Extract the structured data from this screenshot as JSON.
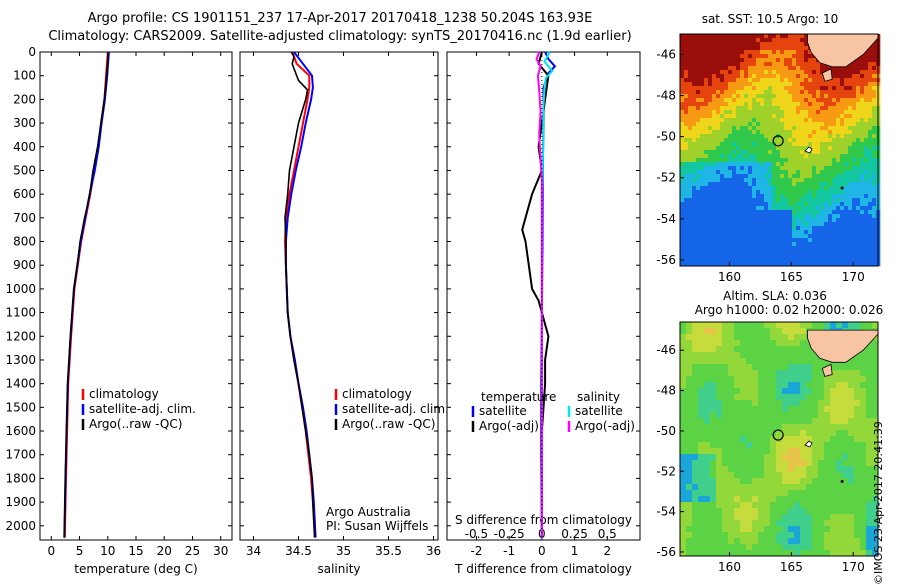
{
  "header": {
    "line1": "Argo profile: CS 1901151_237 17-Apr-2017 20170418_1238 50.204S 163.93E",
    "line2": "Climatology: CARS2009. Satellite-adjusted climatology: synTS_20170416.nc (1.9d earlier)"
  },
  "stamp": "©IMOS 23-Apr-2017 20:41:39",
  "colors": {
    "climatology": "#ff0000",
    "satellite": "#0000ff",
    "argo": "#000000",
    "satellite_sal": "#00e5ee",
    "argo_sal": "#ff00ff",
    "land": "#f7c4a4"
  },
  "depth_ticks": [
    0,
    100,
    200,
    300,
    400,
    500,
    600,
    700,
    800,
    900,
    1000,
    1100,
    1200,
    1300,
    1400,
    1500,
    1600,
    1700,
    1800,
    1900,
    2000
  ],
  "chart_data": [
    {
      "type": "line",
      "xlabel": "temperature (deg C)",
      "xticks": [
        "0",
        "5",
        "10",
        "15",
        "20",
        "25",
        "30"
      ],
      "xlim": [
        -2,
        32
      ],
      "ylim": [
        0,
        2060
      ],
      "legend": [
        "climatology",
        "satellite-adj. clim.",
        "Argo(..raw -QC)"
      ],
      "legend_position": "lower-right",
      "series": [
        {
          "name": "climatology",
          "depth": [
            0,
            100,
            200,
            300,
            400,
            500,
            600,
            700,
            800,
            900,
            1000,
            1200,
            1400,
            1600,
            1800,
            2050
          ],
          "values": [
            10.0,
            9.7,
            9.4,
            8.8,
            8.3,
            7.6,
            6.9,
            6.1,
            5.3,
            4.7,
            4.1,
            3.5,
            3.0,
            2.8,
            2.6,
            2.4
          ]
        },
        {
          "name": "satellite-adj. clim.",
          "depth": [
            0,
            100,
            200,
            300,
            400,
            500,
            600,
            700,
            800,
            900,
            1000,
            1200,
            1400,
            1600,
            1800,
            2050
          ],
          "values": [
            10.2,
            9.9,
            9.5,
            8.9,
            8.4,
            7.7,
            6.8,
            6.0,
            5.2,
            4.6,
            4.0,
            3.4,
            2.9,
            2.7,
            2.5,
            2.3
          ]
        },
        {
          "name": "Argo(..raw -QC)",
          "depth": [
            0,
            100,
            200,
            300,
            400,
            500,
            600,
            650,
            700,
            800,
            900,
            1000,
            1200,
            1400,
            1600,
            1800,
            2050
          ],
          "values": [
            10.1,
            9.8,
            9.4,
            8.8,
            8.2,
            7.4,
            6.8,
            6.4,
            5.9,
            5.1,
            4.6,
            4.0,
            3.4,
            2.9,
            2.7,
            2.5,
            2.3
          ]
        }
      ]
    },
    {
      "type": "line",
      "xlabel": "salinity",
      "xticks": [
        "34",
        "34.5",
        "35",
        "35.5",
        "36"
      ],
      "xlim": [
        33.85,
        36.05
      ],
      "ylim": [
        0,
        2060
      ],
      "legend": [
        "climatology",
        "satellite-adj. clim.",
        "Argo(..raw -QC)"
      ],
      "legend_position": "lower-right",
      "annotation": [
        "Argo Australia",
        "PI: Susan Wijffels"
      ],
      "series": [
        {
          "name": "climatology",
          "depth": [
            0,
            50,
            100,
            150,
            200,
            300,
            400,
            500,
            600,
            700,
            800,
            900,
            1000,
            1100,
            1200,
            1300,
            1400,
            1500,
            1600,
            1700,
            1800,
            1900,
            2050
          ],
          "values": [
            34.43,
            34.48,
            34.62,
            34.62,
            34.6,
            34.55,
            34.5,
            34.45,
            34.4,
            34.36,
            34.35,
            34.36,
            34.37,
            34.38,
            34.41,
            34.45,
            34.5,
            34.54,
            34.58,
            34.61,
            34.64,
            34.66,
            34.68
          ]
        },
        {
          "name": "satellite-adj. clim.",
          "depth": [
            0,
            50,
            100,
            150,
            200,
            300,
            400,
            500,
            600,
            700,
            800,
            900,
            1000,
            1100,
            1200,
            1300,
            1400,
            1500,
            1600,
            1700,
            1800,
            1900,
            2050
          ],
          "values": [
            34.45,
            34.55,
            34.65,
            34.66,
            34.64,
            34.58,
            34.53,
            34.47,
            34.42,
            34.38,
            34.36,
            34.36,
            34.37,
            34.38,
            34.41,
            34.46,
            34.5,
            34.55,
            34.59,
            34.62,
            34.65,
            34.67,
            34.69
          ]
        },
        {
          "name": "Argo(..raw -QC)",
          "depth": [
            0,
            20,
            50,
            80,
            120,
            160,
            200,
            300,
            400,
            500,
            600,
            700,
            800,
            900,
            1000,
            1100,
            1200,
            1300,
            1400,
            1500,
            1600,
            1700,
            1800,
            1900,
            2050
          ],
          "values": [
            34.42,
            34.45,
            34.43,
            34.46,
            34.5,
            34.6,
            34.58,
            34.5,
            34.45,
            34.4,
            34.38,
            34.35,
            34.36,
            34.36,
            34.37,
            34.38,
            34.41,
            34.45,
            34.5,
            34.54,
            34.58,
            34.62,
            34.65,
            34.66,
            34.68
          ]
        }
      ]
    },
    {
      "type": "line",
      "xlabel": "T difference from climatology",
      "xlabel_top": "S difference from climatology",
      "xticks": [
        "-2",
        "-1",
        "0",
        "1",
        "2"
      ],
      "xticks_top": [
        "-0.5",
        "-0.25",
        "0",
        "0.25",
        "0.5"
      ],
      "xlim": [
        -2.9,
        3.0
      ],
      "ylim": [
        0,
        2060
      ],
      "legend_columns": [
        {
          "title": "temperature",
          "items": [
            "satellite",
            "Argo(-adj)"
          ]
        },
        {
          "title": "salinity",
          "items": [
            "satellite",
            "Argo(-adj)"
          ]
        }
      ],
      "legend_position": "lower-center",
      "series": [
        {
          "name": "temperature satellite",
          "depth": [
            0,
            30,
            60,
            90,
            150,
            300,
            500,
            800,
            1100,
            1400,
            1700,
            2050
          ],
          "values": [
            0.1,
            0.2,
            0.4,
            0.2,
            0.05,
            0.05,
            0.03,
            0.02,
            0.0,
            -0.02,
            -0.02,
            0.0
          ]
        },
        {
          "name": "temperature Argo(-adj)",
          "depth": [
            0,
            50,
            100,
            200,
            300,
            400,
            500,
            600,
            700,
            750,
            800,
            900,
            1000,
            1050,
            1100,
            1200,
            1300,
            1400,
            1600,
            1800,
            2050
          ],
          "values": [
            0.0,
            -0.1,
            0.2,
            0.1,
            0.0,
            -0.1,
            0.0,
            -0.3,
            -0.5,
            -0.6,
            -0.5,
            -0.4,
            -0.3,
            -0.1,
            0.0,
            0.2,
            0.1,
            0.1,
            0.0,
            0.0,
            0.0
          ]
        },
        {
          "name": "salinity satellite",
          "depth": [
            0,
            40,
            80,
            110,
            150,
            250,
            400,
            600,
            900,
            1200,
            1500,
            1800,
            2050
          ],
          "values": [
            0.06,
            0.02,
            0.08,
            0.03,
            0.02,
            0.01,
            0.01,
            0.0,
            0.0,
            0.0,
            0.0,
            0.0,
            0.0
          ]
        },
        {
          "name": "salinity Argo(-adj)",
          "depth": [
            0,
            30,
            60,
            100,
            160,
            250,
            350,
            450,
            550,
            650,
            800,
            1000,
            1200,
            1500,
            1800,
            2050
          ],
          "values": [
            -0.02,
            -0.04,
            -0.01,
            -0.03,
            -0.02,
            -0.01,
            -0.02,
            -0.01,
            0.0,
            0.0,
            0.0,
            0.0,
            0.0,
            0.0,
            0.0,
            0.0
          ]
        }
      ]
    },
    {
      "type": "heatmap",
      "title": "sat. SST: 10.5 Argo: 10",
      "xticks": [
        "160",
        "165",
        "170"
      ],
      "yticks": [
        "-46",
        "-48",
        "-50",
        "-52",
        "-54",
        "-56"
      ],
      "xlim": [
        156,
        172
      ],
      "ylim": [
        -56.3,
        -45
      ],
      "argo_position": {
        "lon": 163.93,
        "lat": -50.204
      }
    },
    {
      "type": "heatmap",
      "title_lines": [
        "Altim. SLA: 0.036",
        "Argo h1000: 0.02 h2000: 0.026"
      ],
      "xticks": [
        "160",
        "165",
        "170"
      ],
      "yticks": [
        "-46",
        "-48",
        "-50",
        "-52",
        "-54",
        "-56"
      ],
      "xlim": [
        156,
        172
      ],
      "ylim": [
        -56.2,
        -44.6
      ],
      "argo_position": {
        "lon": 163.93,
        "lat": -50.204
      }
    }
  ]
}
